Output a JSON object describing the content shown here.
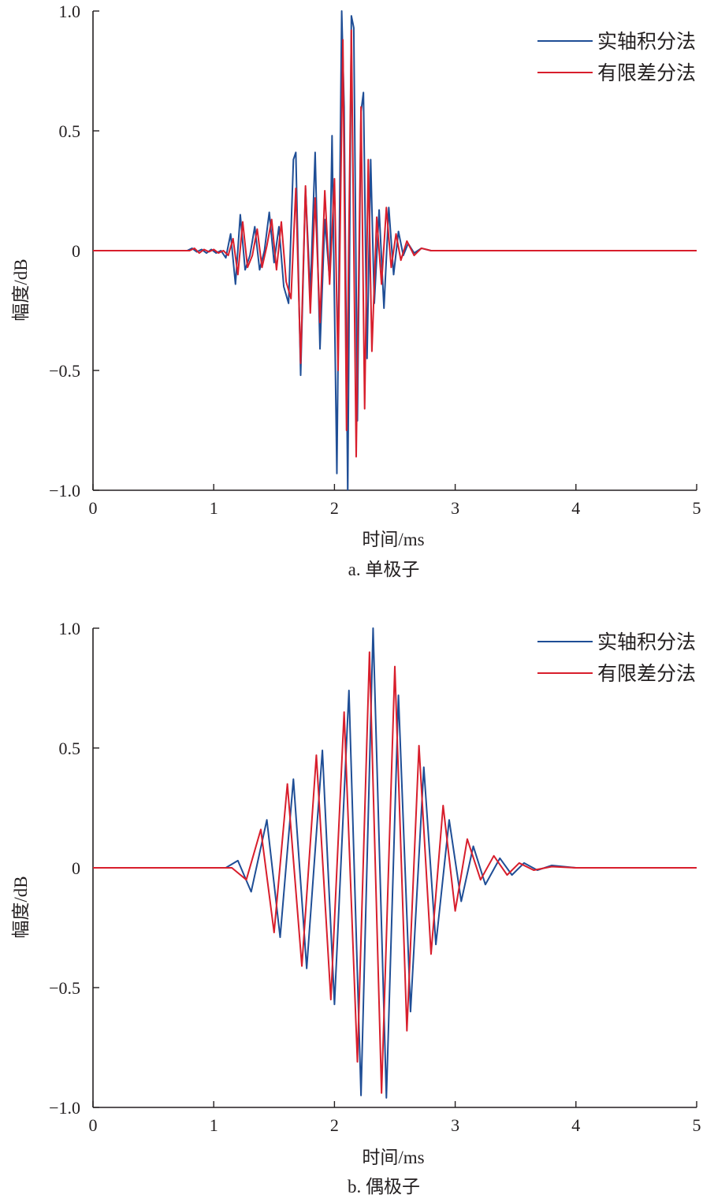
{
  "chart_data": [
    {
      "type": "line",
      "caption": "a. 单极子",
      "xlabel": "时间/ms",
      "ylabel": "幅度/dB",
      "xlim": [
        0,
        5
      ],
      "ylim": [
        -1.0,
        1.0
      ],
      "xticks": [
        "0",
        "1",
        "2",
        "3",
        "4",
        "5"
      ],
      "yticks": [
        "−1.0",
        "−0.5",
        "0",
        "0.5",
        "1.0"
      ],
      "grid": false,
      "legend_position": "top-right",
      "series": [
        {
          "name": "实轴积分法",
          "color": "#1f4e96",
          "points": [
            [
              0,
              0
            ],
            [
              0.78,
              0
            ],
            [
              0.82,
              0.01
            ],
            [
              0.86,
              -0.005
            ],
            [
              0.9,
              0.005
            ],
            [
              0.94,
              -0.01
            ],
            [
              0.98,
              0.005
            ],
            [
              1.02,
              -0.01
            ],
            [
              1.06,
              0.0
            ],
            [
              1.1,
              -0.03
            ],
            [
              1.14,
              0.07
            ],
            [
              1.18,
              -0.14
            ],
            [
              1.22,
              0.15
            ],
            [
              1.26,
              -0.08
            ],
            [
              1.3,
              -0.02
            ],
            [
              1.34,
              0.1
            ],
            [
              1.38,
              -0.08
            ],
            [
              1.42,
              0.0
            ],
            [
              1.46,
              0.16
            ],
            [
              1.5,
              -0.05
            ],
            [
              1.54,
              0.1
            ],
            [
              1.58,
              -0.15
            ],
            [
              1.62,
              -0.22
            ],
            [
              1.66,
              0.38
            ],
            [
              1.68,
              0.41
            ],
            [
              1.72,
              -0.52
            ],
            [
              1.76,
              0.26
            ],
            [
              1.8,
              -0.18
            ],
            [
              1.84,
              0.41
            ],
            [
              1.88,
              -0.41
            ],
            [
              1.92,
              0.13
            ],
            [
              1.96,
              -0.12
            ],
            [
              1.98,
              0.48
            ],
            [
              2.02,
              -0.93
            ],
            [
              2.06,
              1.0
            ],
            [
              2.08,
              0.6
            ],
            [
              2.11,
              -1.02
            ],
            [
              2.14,
              0.98
            ],
            [
              2.16,
              0.93
            ],
            [
              2.19,
              -0.71
            ],
            [
              2.22,
              0.58
            ],
            [
              2.24,
              0.66
            ],
            [
              2.27,
              -0.45
            ],
            [
              2.3,
              0.38
            ],
            [
              2.33,
              -0.22
            ],
            [
              2.37,
              0.17
            ],
            [
              2.41,
              -0.24
            ],
            [
              2.45,
              0.18
            ],
            [
              2.49,
              -0.1
            ],
            [
              2.53,
              0.08
            ],
            [
              2.57,
              -0.02
            ],
            [
              2.61,
              0.03
            ],
            [
              2.66,
              -0.01
            ],
            [
              2.72,
              0.01
            ],
            [
              2.8,
              0
            ],
            [
              5,
              0
            ]
          ]
        },
        {
          "name": "有限差分法",
          "color": "#d81e2c",
          "points": [
            [
              0,
              0
            ],
            [
              0.8,
              0
            ],
            [
              0.84,
              0.01
            ],
            [
              0.88,
              -0.01
            ],
            [
              0.92,
              0.005
            ],
            [
              0.96,
              -0.005
            ],
            [
              1.0,
              0.005
            ],
            [
              1.04,
              -0.01
            ],
            [
              1.08,
              0.0
            ],
            [
              1.12,
              -0.02
            ],
            [
              1.16,
              0.05
            ],
            [
              1.2,
              -0.1
            ],
            [
              1.24,
              0.12
            ],
            [
              1.28,
              -0.07
            ],
            [
              1.32,
              -0.02
            ],
            [
              1.36,
              0.09
            ],
            [
              1.4,
              -0.07
            ],
            [
              1.44,
              0.02
            ],
            [
              1.48,
              0.13
            ],
            [
              1.52,
              -0.08
            ],
            [
              1.56,
              0.12
            ],
            [
              1.6,
              -0.13
            ],
            [
              1.64,
              -0.2
            ],
            [
              1.68,
              0.26
            ],
            [
              1.72,
              -0.47
            ],
            [
              1.76,
              0.27
            ],
            [
              1.8,
              -0.26
            ],
            [
              1.84,
              0.22
            ],
            [
              1.88,
              -0.3
            ],
            [
              1.92,
              0.25
            ],
            [
              1.96,
              -0.14
            ],
            [
              2.0,
              0.3
            ],
            [
              2.03,
              -0.5
            ],
            [
              2.07,
              0.88
            ],
            [
              2.1,
              -0.75
            ],
            [
              2.14,
              0.92
            ],
            [
              2.18,
              -0.86
            ],
            [
              2.22,
              0.6
            ],
            [
              2.25,
              -0.66
            ],
            [
              2.28,
              0.38
            ],
            [
              2.31,
              -0.42
            ],
            [
              2.35,
              0.14
            ],
            [
              2.39,
              -0.14
            ],
            [
              2.43,
              0.18
            ],
            [
              2.47,
              -0.07
            ],
            [
              2.51,
              0.07
            ],
            [
              2.55,
              -0.04
            ],
            [
              2.6,
              0.04
            ],
            [
              2.66,
              -0.02
            ],
            [
              2.72,
              0.01
            ],
            [
              2.8,
              0
            ],
            [
              5,
              0
            ]
          ]
        }
      ]
    },
    {
      "type": "line",
      "caption": "b. 偶极子",
      "xlabel": "时间/ms",
      "ylabel": "幅度/dB",
      "xlim": [
        0,
        5
      ],
      "ylim": [
        -1.0,
        1.0
      ],
      "xticks": [
        "0",
        "1",
        "2",
        "3",
        "4",
        "5"
      ],
      "yticks": [
        "−1.0",
        "−0.5",
        "0",
        "0.5",
        "1.0"
      ],
      "grid": false,
      "legend_position": "top-right",
      "series": [
        {
          "name": "实轴积分法",
          "color": "#1f4e96",
          "points": [
            [
              0,
              0
            ],
            [
              1.0,
              0
            ],
            [
              1.1,
              0.0
            ],
            [
              1.2,
              0.03
            ],
            [
              1.31,
              -0.1
            ],
            [
              1.44,
              0.2
            ],
            [
              1.55,
              -0.29
            ],
            [
              1.66,
              0.37
            ],
            [
              1.77,
              -0.42
            ],
            [
              1.9,
              0.49
            ],
            [
              2.0,
              -0.57
            ],
            [
              2.12,
              0.74
            ],
            [
              2.22,
              -0.95
            ],
            [
              2.32,
              1.0
            ],
            [
              2.43,
              -0.96
            ],
            [
              2.53,
              0.72
            ],
            [
              2.63,
              -0.6
            ],
            [
              2.74,
              0.42
            ],
            [
              2.84,
              -0.32
            ],
            [
              2.95,
              0.2
            ],
            [
              3.05,
              -0.14
            ],
            [
              3.15,
              0.09
            ],
            [
              3.25,
              -0.07
            ],
            [
              3.37,
              0.04
            ],
            [
              3.47,
              -0.03
            ],
            [
              3.57,
              0.02
            ],
            [
              3.68,
              -0.01
            ],
            [
              3.8,
              0.01
            ],
            [
              4.0,
              0
            ],
            [
              5,
              0
            ]
          ]
        },
        {
          "name": "有限差分法",
          "color": "#d81e2c",
          "points": [
            [
              0,
              0
            ],
            [
              1.05,
              0
            ],
            [
              1.15,
              0.0
            ],
            [
              1.27,
              -0.05
            ],
            [
              1.39,
              0.16
            ],
            [
              1.5,
              -0.27
            ],
            [
              1.61,
              0.35
            ],
            [
              1.73,
              -0.41
            ],
            [
              1.85,
              0.47
            ],
            [
              1.97,
              -0.55
            ],
            [
              2.08,
              0.65
            ],
            [
              2.19,
              -0.81
            ],
            [
              2.29,
              0.9
            ],
            [
              2.39,
              -0.94
            ],
            [
              2.5,
              0.84
            ],
            [
              2.6,
              -0.68
            ],
            [
              2.7,
              0.51
            ],
            [
              2.8,
              -0.36
            ],
            [
              2.9,
              0.26
            ],
            [
              3.0,
              -0.18
            ],
            [
              3.1,
              0.12
            ],
            [
              3.21,
              -0.05
            ],
            [
              3.32,
              0.05
            ],
            [
              3.43,
              -0.03
            ],
            [
              3.53,
              0.02
            ],
            [
              3.65,
              -0.01
            ],
            [
              3.8,
              0.005
            ],
            [
              4.0,
              0
            ],
            [
              5,
              0
            ]
          ]
        }
      ]
    }
  ]
}
